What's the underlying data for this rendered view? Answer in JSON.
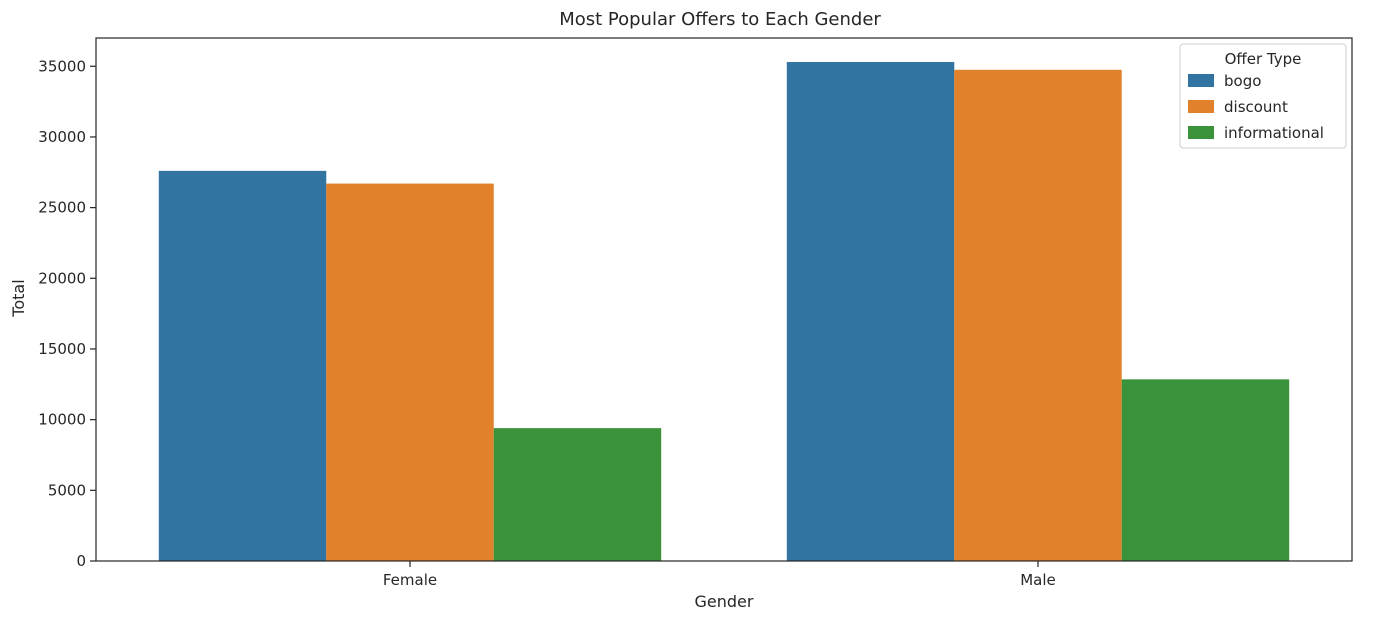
{
  "chart_data": {
    "type": "bar",
    "title": "Most Popular Offers to Each Gender",
    "xlabel": "Gender",
    "ylabel": "Total",
    "categories": [
      "Female",
      "Male"
    ],
    "series": [
      {
        "name": "bogo",
        "color": "#3274a1",
        "values": [
          27600,
          35300
        ]
      },
      {
        "name": "discount",
        "color": "#e1812c",
        "values": [
          26700,
          34750
        ]
      },
      {
        "name": "informational",
        "color": "#3a923a",
        "values": [
          9400,
          12850
        ]
      }
    ],
    "ylim": [
      0,
      37000
    ],
    "yticks": [
      0,
      5000,
      10000,
      15000,
      20000,
      25000,
      30000,
      35000
    ],
    "grid": false,
    "legend": {
      "title": "Offer Type",
      "placement": "top-right"
    }
  }
}
